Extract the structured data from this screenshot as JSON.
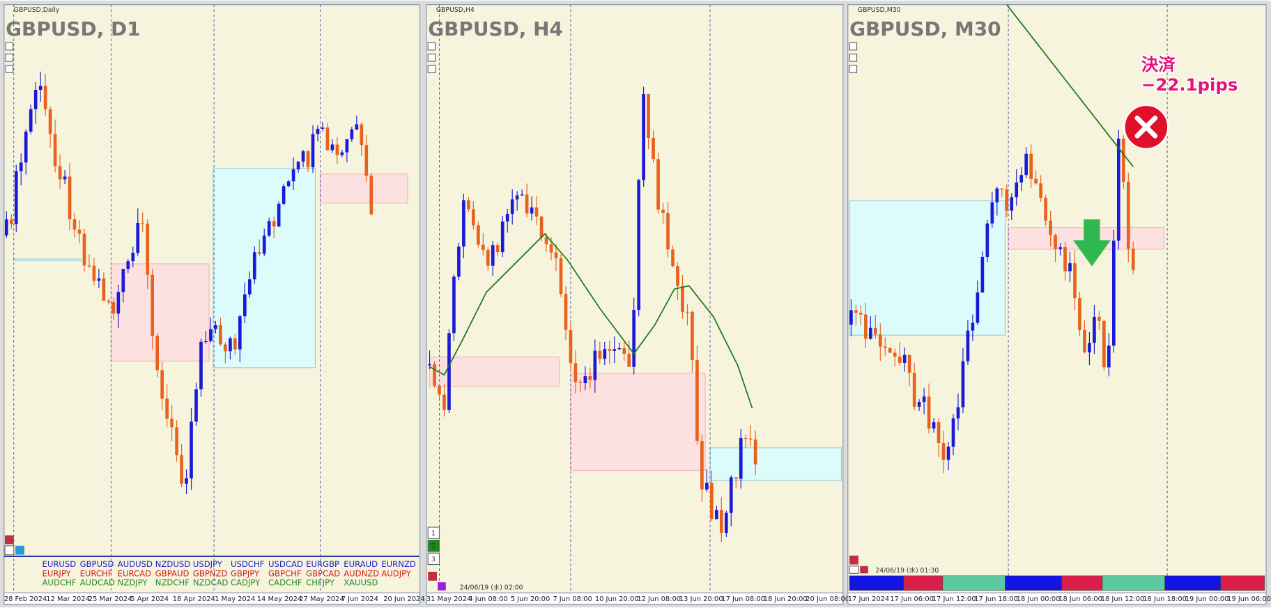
{
  "panels": [
    {
      "symbol_label": "GBPUSD,Daily",
      "title": "GBPUSD, D1",
      "x_labels": [
        "28 Feb 2024",
        "12 Mar 2024",
        "25 Mar 2024",
        "5 Apr 2024",
        "18 Apr 2024",
        "1 May 2024",
        "14 May 2024",
        "27 May 2024",
        "7 Jun 2024",
        "20 Jun 2024"
      ],
      "symbols": [
        [
          "EURUSD",
          "GBPUSD",
          "AUDUSD",
          "NZDUSD",
          "USDJPY",
          "USDCHF",
          "USDCAD",
          "EURGBP",
          "EURAUD",
          "EURNZD"
        ],
        [
          "EURJPY",
          "EURCHF",
          "EURCAD",
          "GBPAUD",
          "GBPNZD",
          "GBPJPY",
          "GBPCHF",
          "GBPCAD",
          "AUDNZD",
          "AUDJPY"
        ],
        [
          "AUDCHF",
          "AUDCAD",
          "NZDJPY",
          "NZDCHF",
          "NZDCAD",
          "CADJPY",
          "CADCHF",
          "CHFJPY",
          "XAUUSD"
        ]
      ]
    },
    {
      "symbol_label": "GBPUSD,H4",
      "title": "GBPUSD, H4",
      "x_labels": [
        "31 May 2024",
        "4 Jun 08:00",
        "5 Jun 20:00",
        "7 Jun 08:00",
        "10 Jun 20:00",
        "12 Jun 08:00",
        "13 Jun 20:00",
        "17 Jun 08:00",
        "18 Jun 20:00",
        "20 Jun 08:00"
      ],
      "buttons": [
        "1",
        "2",
        "3"
      ],
      "timestamp": "24/06/19 (水) 02:00"
    },
    {
      "symbol_label": "GBPUSD,M30",
      "title": "GBPUSD, M30",
      "x_labels": [
        "17 Jun 2024",
        "17 Jun 06:00",
        "17 Jun 12:00",
        "17 Jun 18:00",
        "18 Jun 00:00",
        "18 Jun 06:00",
        "18 Jun 12:00",
        "18 Jun 18:00",
        "19 Jun 00:00",
        "19 Jun 06:00"
      ],
      "timestamp": "24/06/19 (水) 01:30",
      "annotation": [
        "決済",
        "−22.1pips"
      ]
    }
  ]
}
